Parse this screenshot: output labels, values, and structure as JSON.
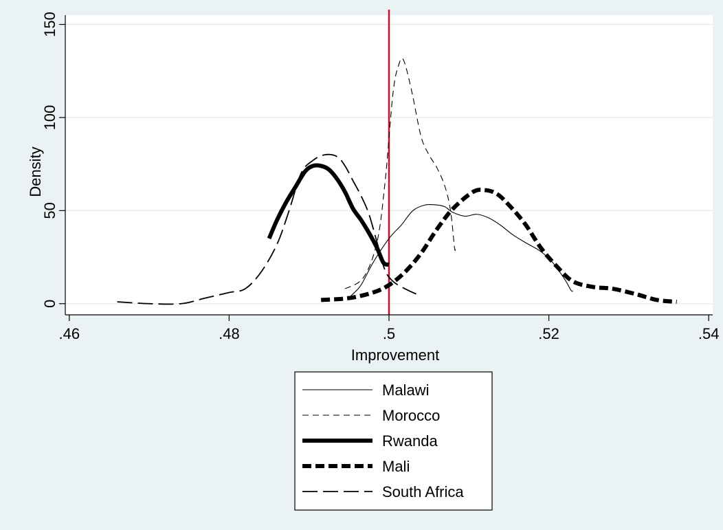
{
  "chart_data": {
    "type": "line",
    "title": "",
    "xlabel": "Improvement",
    "ylabel": "Density",
    "xlim": [
      0.4595,
      0.5405
    ],
    "ylim": [
      -6,
      155
    ],
    "x_ticks": [
      0.46,
      0.48,
      0.5,
      0.52,
      0.54
    ],
    "x_tick_labels": [
      ".46",
      ".48",
      ".5",
      ".52",
      ".54"
    ],
    "y_ticks": [
      0,
      50,
      100,
      150
    ],
    "y_tick_labels": [
      "0",
      "50",
      "100",
      "150"
    ],
    "grid": "horizontal",
    "legend_position": "bottom",
    "reference_line": {
      "x": 0.5,
      "color": "#c8102e"
    },
    "series": [
      {
        "name": "Malawi",
        "style": "thin-solid",
        "points": [
          [
            0.4952,
            4
          ],
          [
            0.4965,
            10
          ],
          [
            0.498,
            22
          ],
          [
            0.5,
            35
          ],
          [
            0.5015,
            42
          ],
          [
            0.503,
            50
          ],
          [
            0.5045,
            53
          ],
          [
            0.506,
            53
          ],
          [
            0.507,
            52
          ],
          [
            0.508,
            49
          ],
          [
            0.5095,
            47
          ],
          [
            0.511,
            48
          ],
          [
            0.5125,
            46
          ],
          [
            0.514,
            42
          ],
          [
            0.5155,
            37
          ],
          [
            0.517,
            33
          ],
          [
            0.519,
            28
          ],
          [
            0.5205,
            22
          ],
          [
            0.522,
            13
          ],
          [
            0.5228,
            7
          ],
          [
            0.523,
            7
          ]
        ]
      },
      {
        "name": "Morocco",
        "style": "thin-dashed",
        "points": [
          [
            0.4945,
            8
          ],
          [
            0.4968,
            14
          ],
          [
            0.4985,
            33
          ],
          [
            0.4995,
            65
          ],
          [
            0.5005,
            113
          ],
          [
            0.5012,
            128
          ],
          [
            0.5018,
            131
          ],
          [
            0.5028,
            115
          ],
          [
            0.504,
            90
          ],
          [
            0.505,
            80
          ],
          [
            0.506,
            73
          ],
          [
            0.507,
            63
          ],
          [
            0.5077,
            50
          ],
          [
            0.5082,
            30
          ],
          [
            0.5083,
            30
          ]
        ]
      },
      {
        "name": "Rwanda",
        "style": "thick-solid",
        "points": [
          [
            0.485,
            35
          ],
          [
            0.486,
            45
          ],
          [
            0.4872,
            55
          ],
          [
            0.4882,
            62
          ],
          [
            0.4895,
            71
          ],
          [
            0.4905,
            74
          ],
          [
            0.4915,
            74
          ],
          [
            0.4925,
            72
          ],
          [
            0.4935,
            67
          ],
          [
            0.4945,
            60
          ],
          [
            0.4955,
            51
          ],
          [
            0.4965,
            45
          ],
          [
            0.4975,
            38
          ],
          [
            0.4985,
            30
          ],
          [
            0.4993,
            22
          ],
          [
            0.5,
            21
          ]
        ]
      },
      {
        "name": "Mali",
        "style": "thick-dashed",
        "points": [
          [
            0.4915,
            2
          ],
          [
            0.495,
            3
          ],
          [
            0.498,
            6
          ],
          [
            0.5,
            10
          ],
          [
            0.502,
            17
          ],
          [
            0.504,
            27
          ],
          [
            0.506,
            40
          ],
          [
            0.508,
            51
          ],
          [
            0.5105,
            60
          ],
          [
            0.512,
            61
          ],
          [
            0.5135,
            59
          ],
          [
            0.515,
            53
          ],
          [
            0.517,
            43
          ],
          [
            0.519,
            30
          ],
          [
            0.521,
            20
          ],
          [
            0.523,
            12
          ],
          [
            0.5255,
            9
          ],
          [
            0.528,
            8
          ],
          [
            0.531,
            5
          ],
          [
            0.5335,
            2
          ],
          [
            0.536,
            1
          ]
        ]
      },
      {
        "name": "South Africa",
        "style": "long-dash",
        "points": [
          [
            0.466,
            1
          ],
          [
            0.47,
            0
          ],
          [
            0.474,
            0
          ],
          [
            0.477,
            3
          ],
          [
            0.48,
            6
          ],
          [
            0.482,
            8
          ],
          [
            0.484,
            17
          ],
          [
            0.486,
            32
          ],
          [
            0.4875,
            50
          ],
          [
            0.489,
            70
          ],
          [
            0.4905,
            77
          ],
          [
            0.492,
            80
          ],
          [
            0.4935,
            79
          ],
          [
            0.4945,
            74
          ],
          [
            0.4955,
            66
          ],
          [
            0.4965,
            58
          ],
          [
            0.4975,
            48
          ],
          [
            0.4985,
            33
          ],
          [
            0.4995,
            18
          ],
          [
            0.5005,
            12
          ],
          [
            0.502,
            8
          ],
          [
            0.5035,
            5
          ]
        ]
      }
    ]
  },
  "colors": {
    "background": "#eaf2f3",
    "plot_background": "#ffffff",
    "gridline": "#e8eeee",
    "series": "#000000",
    "reference_line": "#c8102e"
  }
}
